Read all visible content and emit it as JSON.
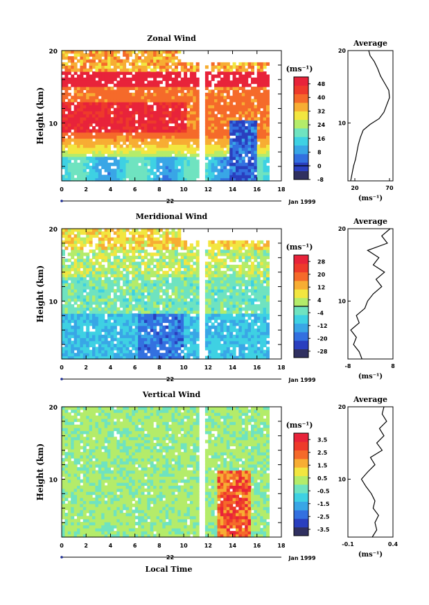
{
  "chart_data": [
    {
      "type": "heatmap",
      "title": "Zonal Wind",
      "ylabel": "Height (km)",
      "yticks": [
        "10",
        "20"
      ],
      "ylim": [
        2,
        20
      ],
      "xticks": [
        "0",
        "2",
        "4",
        "6",
        "8",
        "10",
        "12",
        "14",
        "16",
        "18"
      ],
      "xlim": [
        0,
        18
      ],
      "day_label": "22",
      "date_label": "Jan 1999",
      "colorbar": {
        "unit": "(ms⁻¹)",
        "ticks": [
          "48",
          "40",
          "32",
          "24",
          "16",
          "8",
          "0",
          "-8"
        ],
        "range": [
          -8,
          52
        ],
        "colors": [
          "#303060",
          "#2a3fbf",
          "#3370e0",
          "#39a6e6",
          "#3ed1e3",
          "#6fe3c0",
          "#b4ec6a",
          "#f2e640",
          "#f7ad33",
          "#f56a2a",
          "#ee3a2b",
          "#e8233a"
        ],
        "zero_line_at": 0
      },
      "profile": {
        "title": "Average",
        "xticks": [
          "20",
          "70"
        ],
        "xlim": [
          10,
          75
        ],
        "yticks": [
          "10",
          "20"
        ],
        "xunit": "(ms⁻¹)",
        "points": [
          [
            14,
            2
          ],
          [
            16,
            3
          ],
          [
            18,
            4
          ],
          [
            21,
            5
          ],
          [
            23,
            6
          ],
          [
            25,
            7
          ],
          [
            28,
            8
          ],
          [
            32,
            9
          ],
          [
            42,
            9.8
          ],
          [
            55,
            10.6
          ],
          [
            62,
            11.5
          ],
          [
            66,
            12.5
          ],
          [
            70,
            13.5
          ],
          [
            69,
            14.5
          ],
          [
            63,
            15.5
          ],
          [
            57,
            16.5
          ],
          [
            53,
            17.5
          ],
          [
            48,
            18.5
          ],
          [
            42,
            19.3
          ],
          [
            40,
            20
          ]
        ]
      }
    },
    {
      "type": "heatmap",
      "title": "Meridional Wind",
      "ylabel": "Height (km)",
      "yticks": [
        "10",
        "20"
      ],
      "ylim": [
        2,
        20
      ],
      "xticks": [
        "0",
        "2",
        "4",
        "6",
        "8",
        "10",
        "12",
        "14",
        "16",
        "18"
      ],
      "xlim": [
        0,
        18
      ],
      "day_label": "22",
      "date_label": "Jan 1999",
      "colorbar": {
        "unit": "(ms⁻¹)",
        "ticks": [
          "28",
          "20",
          "12",
          "4",
          "-4",
          "-12",
          "-20",
          "-28"
        ],
        "range": [
          -32,
          32
        ],
        "colors": [
          "#303060",
          "#2a3fbf",
          "#3370e0",
          "#39a6e6",
          "#3ed1e3",
          "#6fe3c0",
          "#b4ec6a",
          "#f2e640",
          "#f7ad33",
          "#f56a2a",
          "#ee3a2b",
          "#e8233a"
        ],
        "zero_line_at": 0
      },
      "profile": {
        "title": "Average",
        "xticks": [
          "-8",
          "8"
        ],
        "xlim": [
          -8,
          8
        ],
        "yticks": [
          "10",
          "20"
        ],
        "xunit": "(ms⁻¹)",
        "points": [
          [
            -3,
            2
          ],
          [
            -4,
            3
          ],
          [
            -6,
            4
          ],
          [
            -5,
            5
          ],
          [
            -7,
            6
          ],
          [
            -4,
            7
          ],
          [
            -5,
            8
          ],
          [
            -2,
            9
          ],
          [
            -1,
            10
          ],
          [
            1,
            11
          ],
          [
            4,
            12
          ],
          [
            2,
            13
          ],
          [
            5,
            14
          ],
          [
            1,
            15
          ],
          [
            3,
            16
          ],
          [
            -1,
            17
          ],
          [
            6,
            18
          ],
          [
            4,
            19
          ],
          [
            7,
            20
          ]
        ]
      }
    },
    {
      "type": "heatmap",
      "title": "Vertical Wind",
      "ylabel": "Height (km)",
      "xlabel": "Local Time",
      "yticks": [
        "10",
        "20"
      ],
      "ylim": [
        2,
        20
      ],
      "xticks": [
        "0",
        "2",
        "4",
        "6",
        "8",
        "10",
        "12",
        "14",
        "16",
        "18"
      ],
      "xlim": [
        0,
        18
      ],
      "day_label": "22",
      "date_label": "Jan 1999",
      "colorbar": {
        "unit": "(ms⁻¹)",
        "ticks": [
          "3.5",
          "2.5",
          "1.5",
          "0.5",
          "-0.5",
          "-1.5",
          "-2.5",
          "-3.5"
        ],
        "range": [
          -4,
          4
        ],
        "colors": [
          "#303060",
          "#2a3fbf",
          "#3370e0",
          "#39a6e6",
          "#3ed1e3",
          "#6fe3c0",
          "#b4ec6a",
          "#f2e640",
          "#f7ad33",
          "#f56a2a",
          "#ee3a2b",
          "#e8233a"
        ],
        "zero_line_at": null
      },
      "profile": {
        "title": "Average",
        "xticks": [
          "-0.1",
          "0.4"
        ],
        "xlim": [
          -0.1,
          0.4
        ],
        "yticks": [
          "10",
          "20"
        ],
        "xunit": "(ms⁻¹)",
        "points": [
          [
            0.17,
            2
          ],
          [
            0.22,
            3
          ],
          [
            0.2,
            4
          ],
          [
            0.24,
            5
          ],
          [
            0.18,
            6
          ],
          [
            0.2,
            7
          ],
          [
            0.16,
            8
          ],
          [
            0.1,
            9
          ],
          [
            0.05,
            10
          ],
          [
            0.12,
            11
          ],
          [
            0.2,
            12
          ],
          [
            0.15,
            13
          ],
          [
            0.28,
            14
          ],
          [
            0.22,
            15
          ],
          [
            0.3,
            16
          ],
          [
            0.25,
            17
          ],
          [
            0.33,
            18
          ],
          [
            0.28,
            19
          ],
          [
            0.3,
            20
          ]
        ]
      }
    }
  ]
}
